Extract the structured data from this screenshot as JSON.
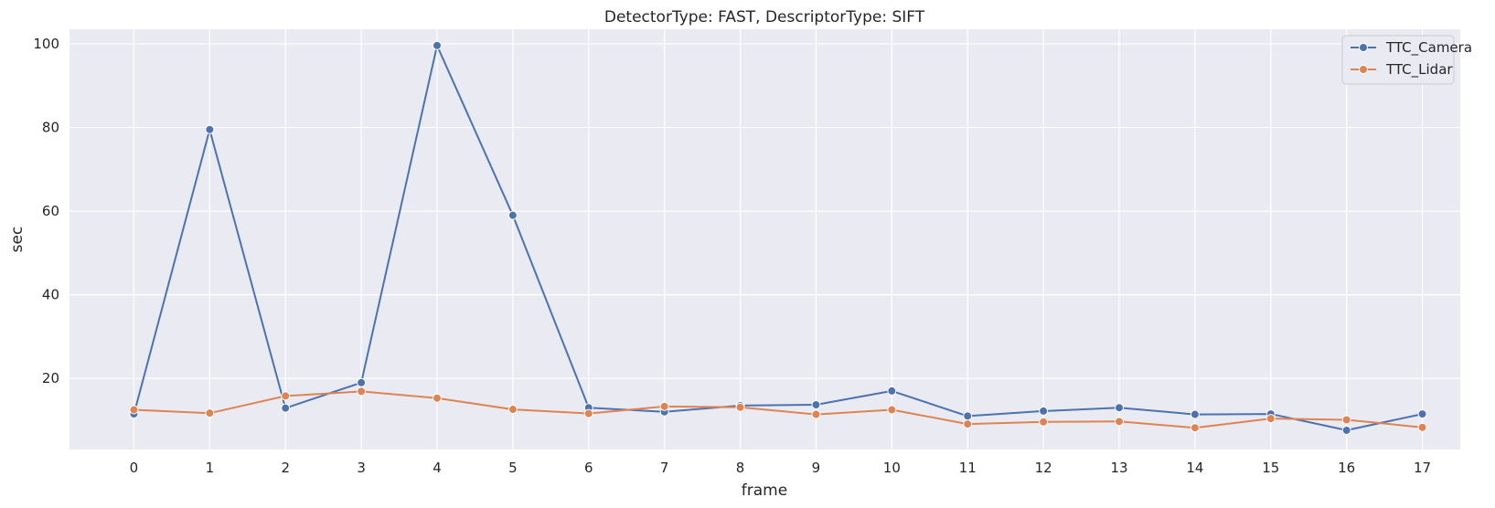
{
  "chart_data": {
    "type": "line",
    "title": "DetectorType: FAST, DescriptorType: SIFT",
    "xlabel": "frame",
    "ylabel": "sec",
    "x": [
      0,
      1,
      2,
      3,
      4,
      5,
      6,
      7,
      8,
      9,
      10,
      11,
      12,
      13,
      14,
      15,
      16,
      17
    ],
    "xticks": [
      "0",
      "1",
      "2",
      "3",
      "4",
      "5",
      "6",
      "7",
      "8",
      "9",
      "10",
      "11",
      "12",
      "13",
      "14",
      "15",
      "16",
      "17"
    ],
    "yticks": [
      20,
      40,
      60,
      80,
      100
    ],
    "xlim": [
      -0.85,
      17.5
    ],
    "ylim": [
      3,
      103.5
    ],
    "grid": true,
    "legend_position": "top-right",
    "series": [
      {
        "name": "TTC_Camera",
        "color": "#4c72b0",
        "values": [
          11.5,
          79.5,
          12.9,
          19.0,
          99.6,
          59.0,
          13.0,
          12.0,
          13.5,
          13.7,
          17.0,
          11.0,
          12.2,
          13.0,
          11.4,
          11.5,
          7.6,
          11.5
        ]
      },
      {
        "name": "TTC_Lidar",
        "color": "#dd8452",
        "values": [
          12.5,
          11.7,
          15.8,
          16.9,
          15.3,
          12.6,
          11.6,
          13.3,
          13.1,
          11.4,
          12.5,
          9.1,
          9.6,
          9.7,
          8.2,
          10.4,
          10.1,
          8.3
        ]
      }
    ]
  }
}
